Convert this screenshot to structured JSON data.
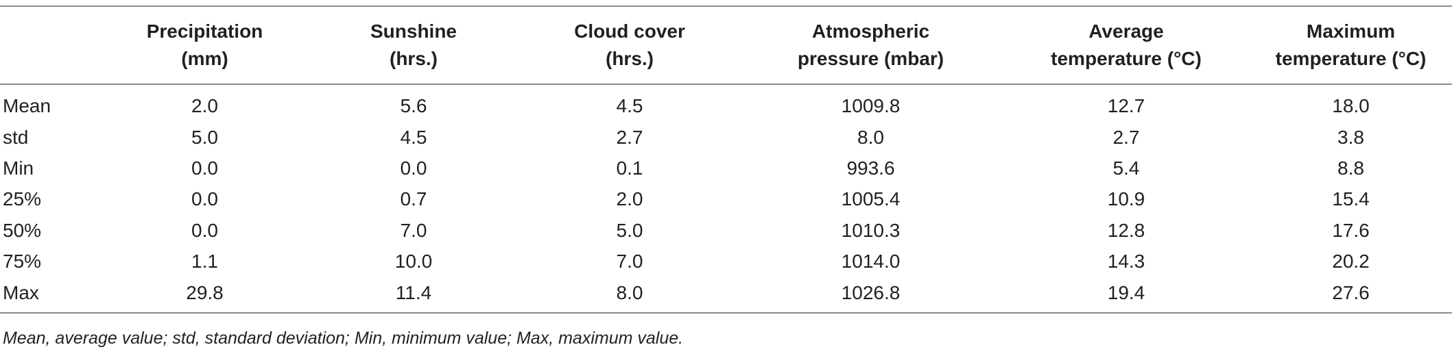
{
  "table": {
    "headers": [
      {
        "line1": "",
        "line2": ""
      },
      {
        "line1": "Precipitation",
        "line2": "(mm)"
      },
      {
        "line1": "Sunshine",
        "line2": "(hrs.)"
      },
      {
        "line1": "Cloud cover",
        "line2": "(hrs.)"
      },
      {
        "line1": "Atmospheric",
        "line2": "pressure (mbar)"
      },
      {
        "line1": "Average",
        "line2": "temperature (°C)"
      },
      {
        "line1": "Maximum",
        "line2": "temperature (°C)"
      }
    ],
    "rows": [
      {
        "label": "Mean",
        "values": [
          "2.0",
          "5.6",
          "4.5",
          "1009.8",
          "12.7",
          "18.0"
        ]
      },
      {
        "label": "std",
        "values": [
          "5.0",
          "4.5",
          "2.7",
          "8.0",
          "2.7",
          "3.8"
        ]
      },
      {
        "label": "Min",
        "values": [
          "0.0",
          "0.0",
          "0.1",
          "993.6",
          "5.4",
          "8.8"
        ]
      },
      {
        "label": "25%",
        "values": [
          "0.0",
          "0.7",
          "2.0",
          "1005.4",
          "10.9",
          "15.4"
        ]
      },
      {
        "label": "50%",
        "values": [
          "0.0",
          "7.0",
          "5.0",
          "1010.3",
          "12.8",
          "17.6"
        ]
      },
      {
        "label": "75%",
        "values": [
          "1.1",
          "10.0",
          "7.0",
          "1014.0",
          "14.3",
          "20.2"
        ]
      },
      {
        "label": "Max",
        "values": [
          "29.8",
          "11.4",
          "8.0",
          "1026.8",
          "19.4",
          "27.6"
        ]
      }
    ]
  },
  "footnote": "Mean, average value; std, standard deviation; Min, minimum value; Max, maximum value."
}
